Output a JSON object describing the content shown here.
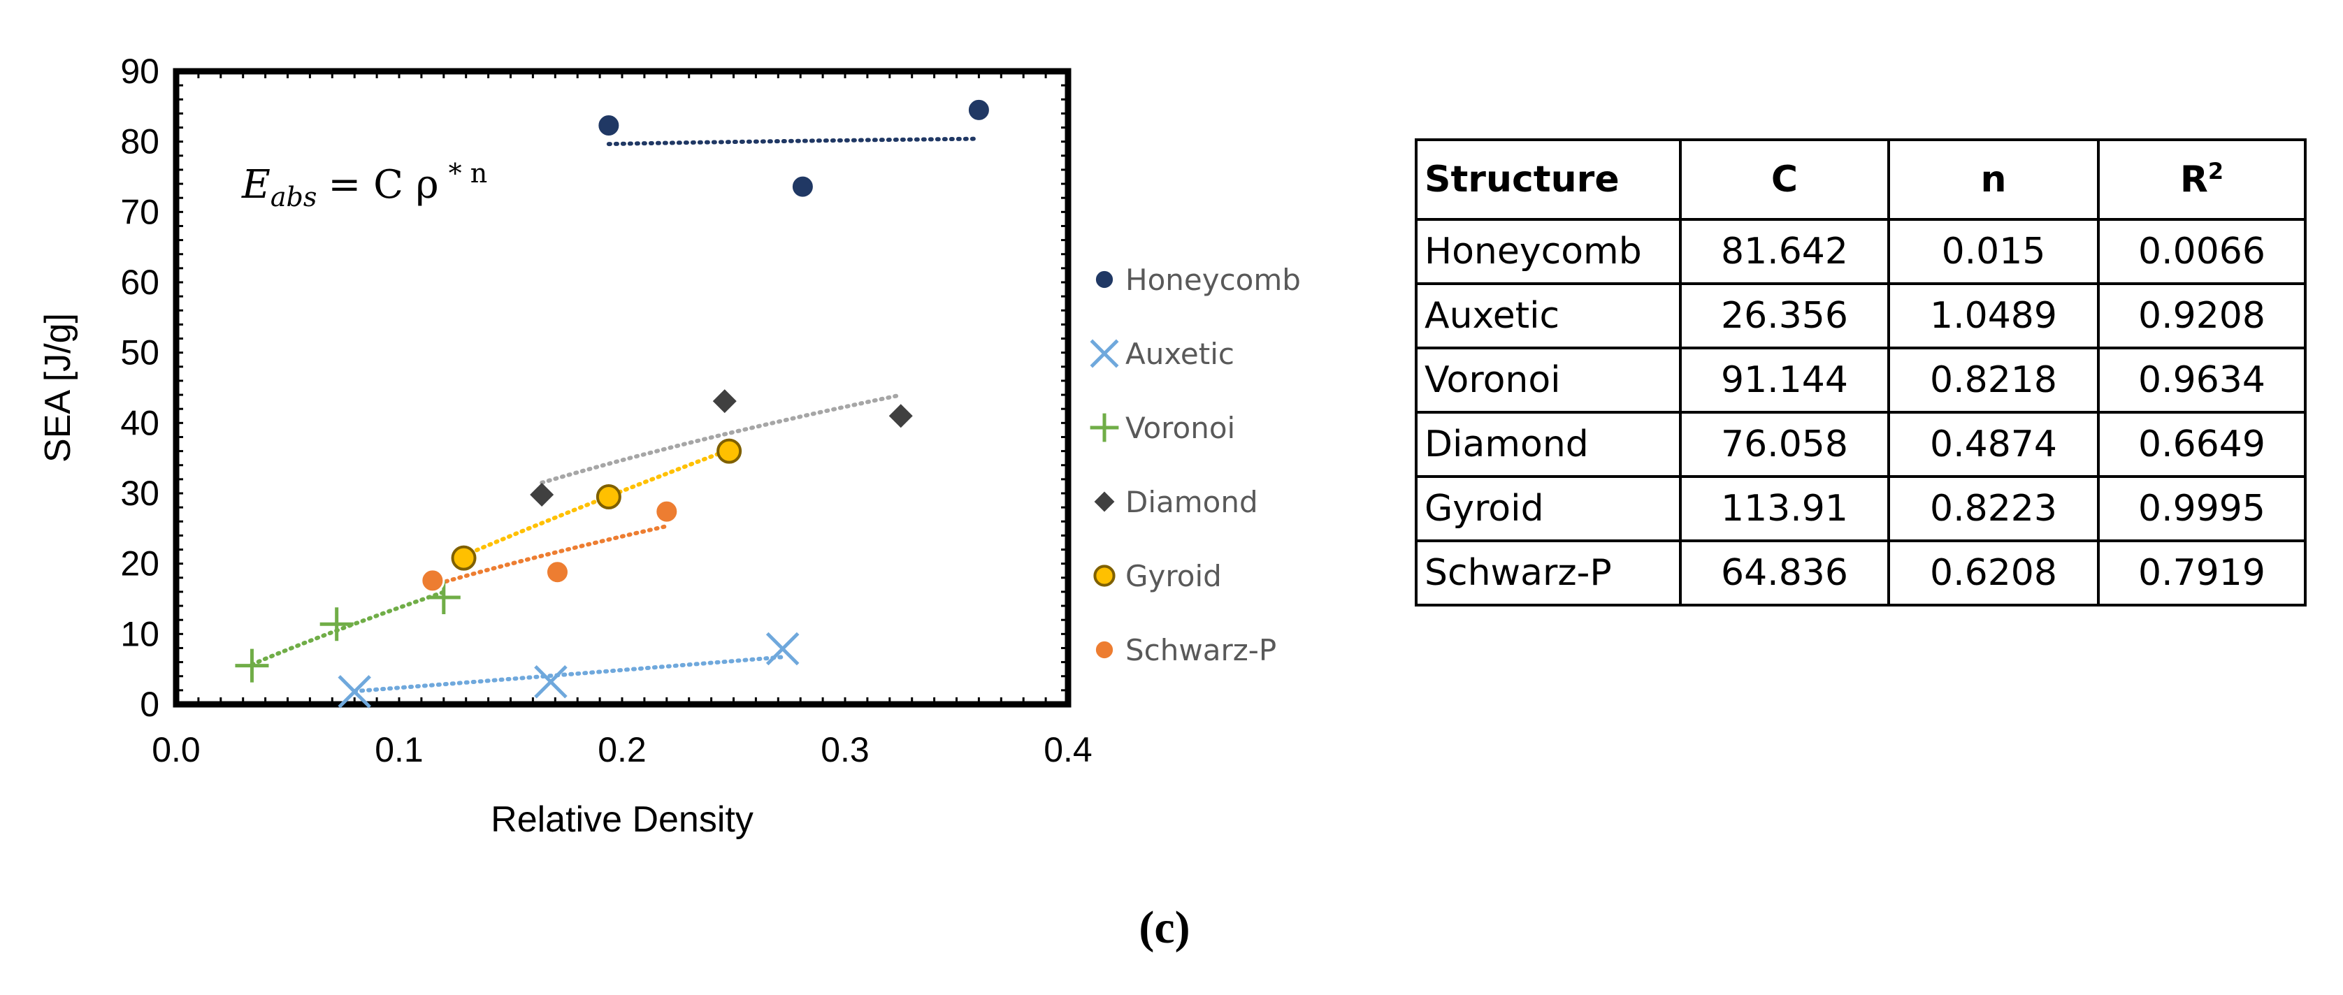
{
  "chart_data": {
    "type": "scatter",
    "xlabel": "Relative Density",
    "ylabel": "SEA [J/g]",
    "xlim": [
      0.0,
      0.4
    ],
    "ylim": [
      0,
      90
    ],
    "xticks": [
      "0.0",
      "0.1",
      "0.2",
      "0.3",
      "0.4"
    ],
    "xtick_values": [
      0.0,
      0.1,
      0.2,
      0.3,
      0.4
    ],
    "yticks": [
      "0",
      "10",
      "20",
      "30",
      "40",
      "50",
      "60",
      "70",
      "80",
      "90"
    ],
    "ytick_values": [
      0,
      10,
      20,
      30,
      40,
      50,
      60,
      70,
      80,
      90
    ],
    "grid": false,
    "legend_position": "right",
    "equation": {
      "lhs": "E",
      "lhs_sub": "abs",
      "rhs": "= C ρ",
      "sup": "* n"
    },
    "series": [
      {
        "name": "Honeycomb",
        "marker": "circle",
        "color": "#203864",
        "x": [
          0.194,
          0.281,
          0.36
        ],
        "y": [
          82.3,
          73.6,
          84.5
        ],
        "fit": {
          "C": 81.642,
          "n": 0.015,
          "x_range": [
            0.194,
            0.36
          ]
        }
      },
      {
        "name": "Auxetic",
        "marker": "x",
        "color": "#6fa8dc",
        "x": [
          0.08,
          0.168,
          0.272
        ],
        "y": [
          1.8,
          3.2,
          7.9
        ],
        "fit": {
          "C": 26.356,
          "n": 1.0489,
          "x_range": [
            0.08,
            0.272
          ]
        }
      },
      {
        "name": "Voronoi",
        "marker": "plus",
        "color": "#70ad47",
        "x": [
          0.034,
          0.072,
          0.12
        ],
        "y": [
          5.5,
          11.4,
          15.2
        ],
        "fit": {
          "C": 91.144,
          "n": 0.8218,
          "x_range": [
            0.034,
            0.12
          ]
        }
      },
      {
        "name": "Diamond",
        "marker": "diamond",
        "color": "#404040",
        "x": [
          0.164,
          0.246,
          0.325
        ],
        "y": [
          29.8,
          43.1,
          41.0
        ],
        "fit": {
          "C": 76.058,
          "n": 0.4874,
          "x_range": [
            0.164,
            0.325
          ],
          "color": "#a6a6a6"
        }
      },
      {
        "name": "Gyroid",
        "marker": "circle-outlined",
        "color": "#ffc000",
        "x": [
          0.129,
          0.194,
          0.248
        ],
        "y": [
          20.8,
          29.5,
          36.0
        ],
        "fit": {
          "C": 113.91,
          "n": 0.8223,
          "x_range": [
            0.129,
            0.248
          ]
        }
      },
      {
        "name": "Schwarz-P",
        "marker": "circle",
        "color": "#ed7d31",
        "x": [
          0.115,
          0.171,
          0.22
        ],
        "y": [
          17.6,
          18.8,
          27.4
        ],
        "fit": {
          "C": 64.836,
          "n": 0.6208,
          "x_range": [
            0.115,
            0.22
          ]
        }
      }
    ]
  },
  "table": {
    "headers": [
      "Structure",
      "C",
      "n",
      "R",
      "2"
    ],
    "rows": [
      [
        "Honeycomb",
        "81.642",
        "0.015",
        "0.0066"
      ],
      [
        "Auxetic",
        "26.356",
        "1.0489",
        "0.9208"
      ],
      [
        "Voronoi",
        "91.144",
        "0.8218",
        "0.9634"
      ],
      [
        "Diamond",
        "76.058",
        "0.4874",
        "0.6649"
      ],
      [
        "Gyroid",
        "113.91",
        "0.8223",
        "0.9995"
      ],
      [
        "Schwarz-P",
        "64.836",
        "0.6208",
        "0.7919"
      ]
    ]
  },
  "caption": "(c)"
}
